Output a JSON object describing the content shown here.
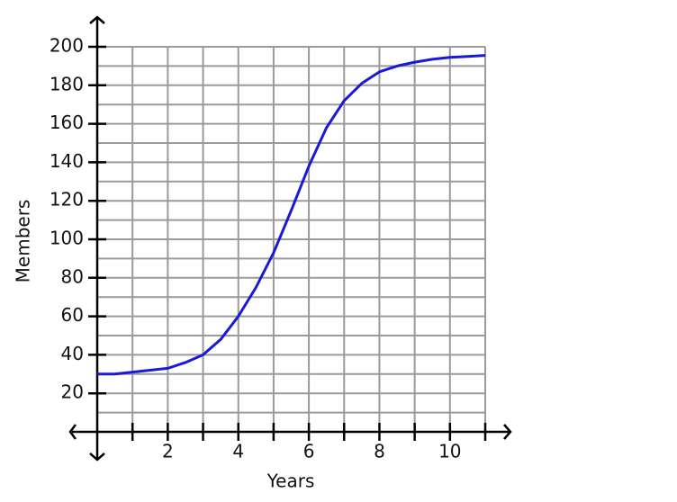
{
  "chart_data": {
    "type": "line",
    "x_label": "Years",
    "y_label": "Members",
    "x": [
      0,
      0.5,
      1,
      1.5,
      2,
      2.5,
      3,
      3.5,
      4,
      4.5,
      5,
      5.5,
      6,
      6.5,
      7,
      7.5,
      8,
      8.5,
      9,
      9.5,
      10,
      10.5,
      11
    ],
    "series": [
      {
        "color": "#1a1ad6",
        "values": [
          30,
          30,
          31,
          32,
          33,
          36,
          40,
          48,
          60,
          75,
          93,
          115,
          138,
          158,
          172,
          181,
          187,
          190,
          192,
          193.5,
          194.5,
          195,
          195.5
        ]
      }
    ],
    "xlim": [
      0,
      11
    ],
    "ylim": [
      0,
      200
    ],
    "xticks": [
      2,
      4,
      6,
      8,
      10
    ],
    "yticks": [
      20,
      40,
      60,
      80,
      100,
      120,
      140,
      160,
      180,
      200
    ],
    "xgrid": [
      1,
      2,
      3,
      4,
      5,
      6,
      7,
      8,
      9,
      10,
      11
    ],
    "ygrid": [
      10,
      20,
      30,
      40,
      50,
      60,
      70,
      80,
      90,
      100,
      110,
      120,
      130,
      140,
      150,
      160,
      170,
      180,
      190,
      200
    ],
    "grid": true
  }
}
